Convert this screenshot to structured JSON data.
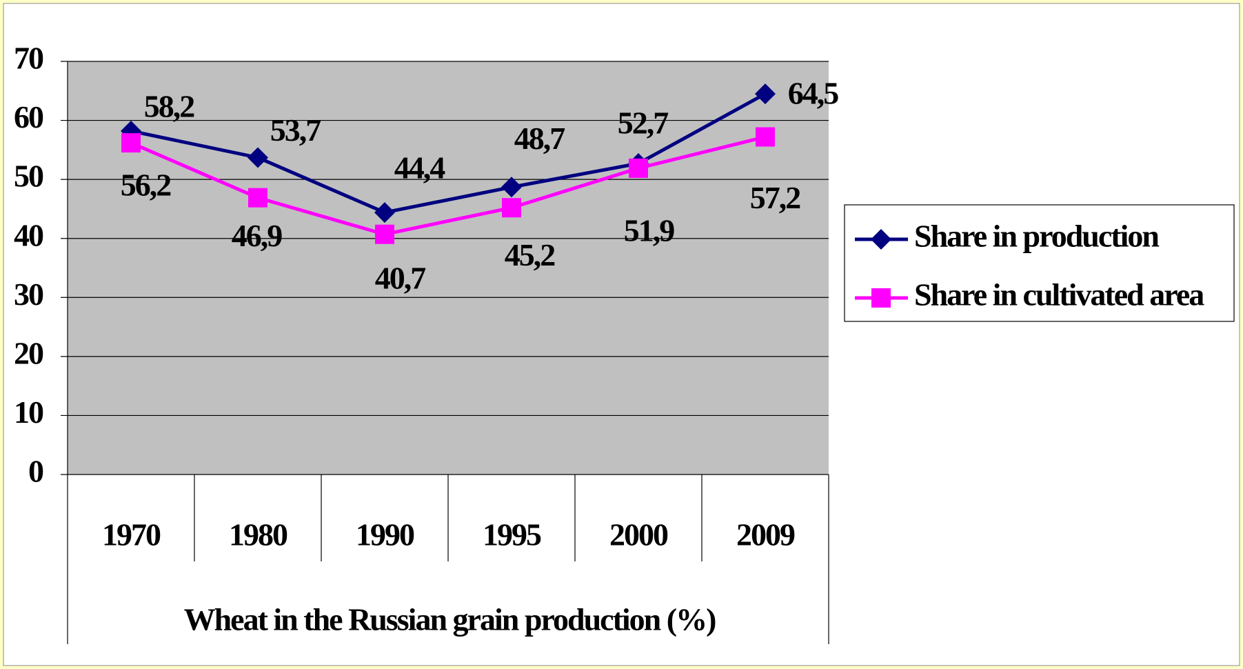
{
  "chart_data": {
    "type": "line",
    "x_label": "Wheat in the Russian grain production (%)",
    "categories": [
      "1970",
      "1980",
      "1990",
      "1995",
      "2000",
      "2009"
    ],
    "series": [
      {
        "name": "Share in production",
        "color": "#000080",
        "marker": "diamond",
        "values": [
          58.2,
          53.7,
          44.4,
          48.7,
          52.7,
          64.5
        ],
        "value_labels": [
          "58,2",
          "53,7",
          "44,4",
          "48,7",
          "52,7",
          "64,5"
        ]
      },
      {
        "name": "Share in cultivated area",
        "color": "#ff00ff",
        "marker": "square",
        "values": [
          56.2,
          46.9,
          40.7,
          45.2,
          51.9,
          57.2
        ],
        "value_labels": [
          "56,2",
          "46,9",
          "40,7",
          "45,2",
          "51,9",
          "57,2"
        ]
      }
    ],
    "ylim": [
      0,
      70
    ],
    "yticks": [
      0,
      10,
      20,
      30,
      40,
      50,
      60,
      70
    ],
    "grid": true
  }
}
